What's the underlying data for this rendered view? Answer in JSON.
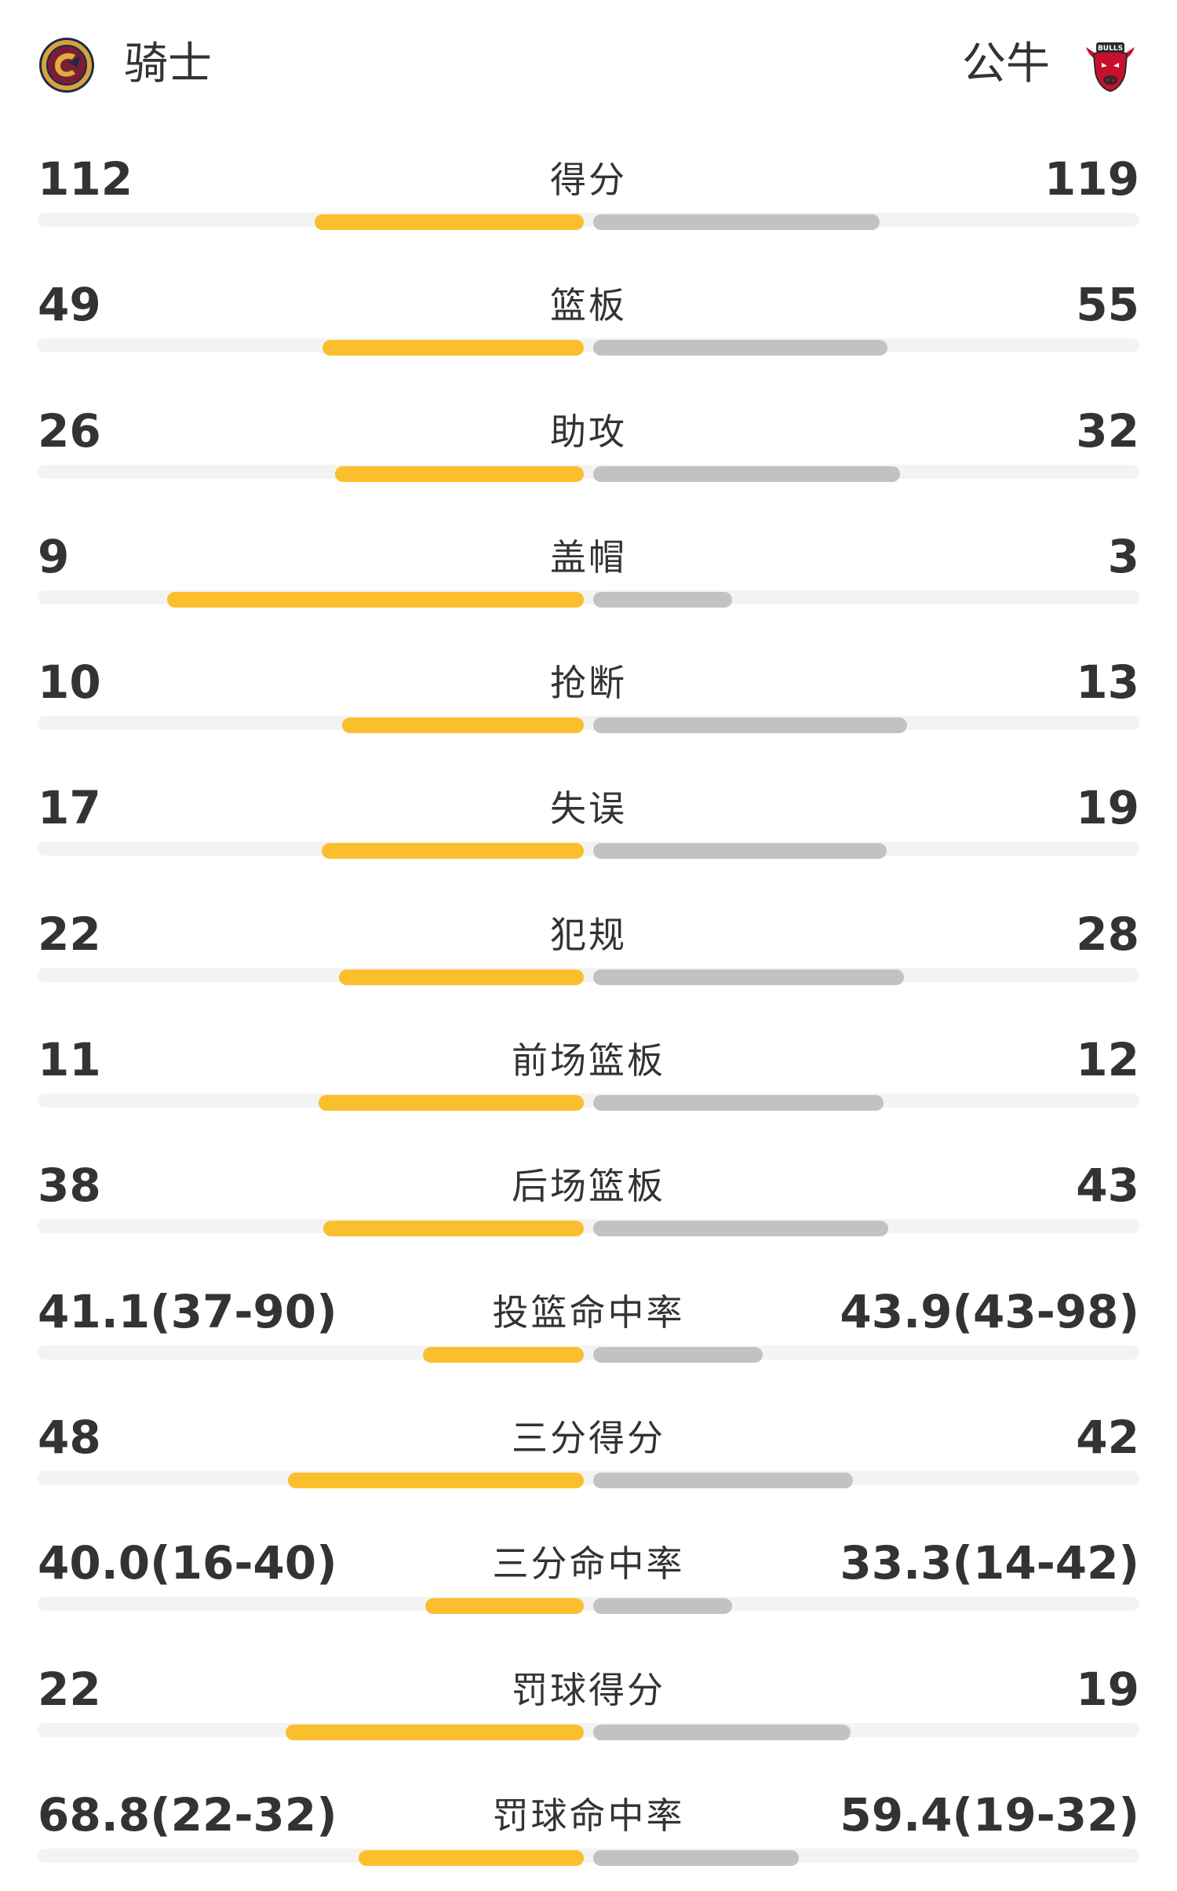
{
  "header": {
    "home_team": "骑士",
    "away_team": "公牛",
    "home_logo_icon": "cavaliers-logo-icon",
    "away_logo_icon": "bulls-logo-icon",
    "away_logo_text": "BULLS"
  },
  "colors": {
    "home_bar": "#fbbf2e",
    "away_bar": "#c2c2c2",
    "track": "#f3f3f3"
  },
  "stats": [
    {
      "label": "得分",
      "home": "112",
      "away": "119",
      "home_share": 0.485,
      "away_share": 0.515
    },
    {
      "label": "篮板",
      "home": "49",
      "away": "55",
      "home_share": 0.471,
      "away_share": 0.529
    },
    {
      "label": "助攻",
      "home": "26",
      "away": "32",
      "home_share": 0.448,
      "away_share": 0.552
    },
    {
      "label": "盖帽",
      "home": "9",
      "away": "3",
      "home_share": 0.75,
      "away_share": 0.25
    },
    {
      "label": "抢断",
      "home": "10",
      "away": "13",
      "home_share": 0.435,
      "away_share": 0.565
    },
    {
      "label": "失误",
      "home": "17",
      "away": "19",
      "home_share": 0.472,
      "away_share": 0.528
    },
    {
      "label": "犯规",
      "home": "22",
      "away": "28",
      "home_share": 0.44,
      "away_share": 0.56
    },
    {
      "label": "前场篮板",
      "home": "11",
      "away": "12",
      "home_share": 0.478,
      "away_share": 0.522
    },
    {
      "label": "后场篮板",
      "home": "38",
      "away": "43",
      "home_share": 0.469,
      "away_share": 0.531
    },
    {
      "label": "投篮命中率",
      "home": "41.1(37-90)",
      "away": "43.9(43-98)",
      "home_share": 0.29,
      "away_share": 0.305
    },
    {
      "label": "三分得分",
      "home": "48",
      "away": "42",
      "home_share": 0.533,
      "away_share": 0.467
    },
    {
      "label": "三分命中率",
      "home": "40.0(16-40)",
      "away": "33.3(14-42)",
      "home_share": 0.285,
      "away_share": 0.25
    },
    {
      "label": "罚球得分",
      "home": "22",
      "away": "19",
      "home_share": 0.537,
      "away_share": 0.463
    },
    {
      "label": "罚球命中率",
      "home": "68.8(22-32)",
      "away": "59.4(19-32)",
      "home_share": 0.405,
      "away_share": 0.37
    }
  ]
}
